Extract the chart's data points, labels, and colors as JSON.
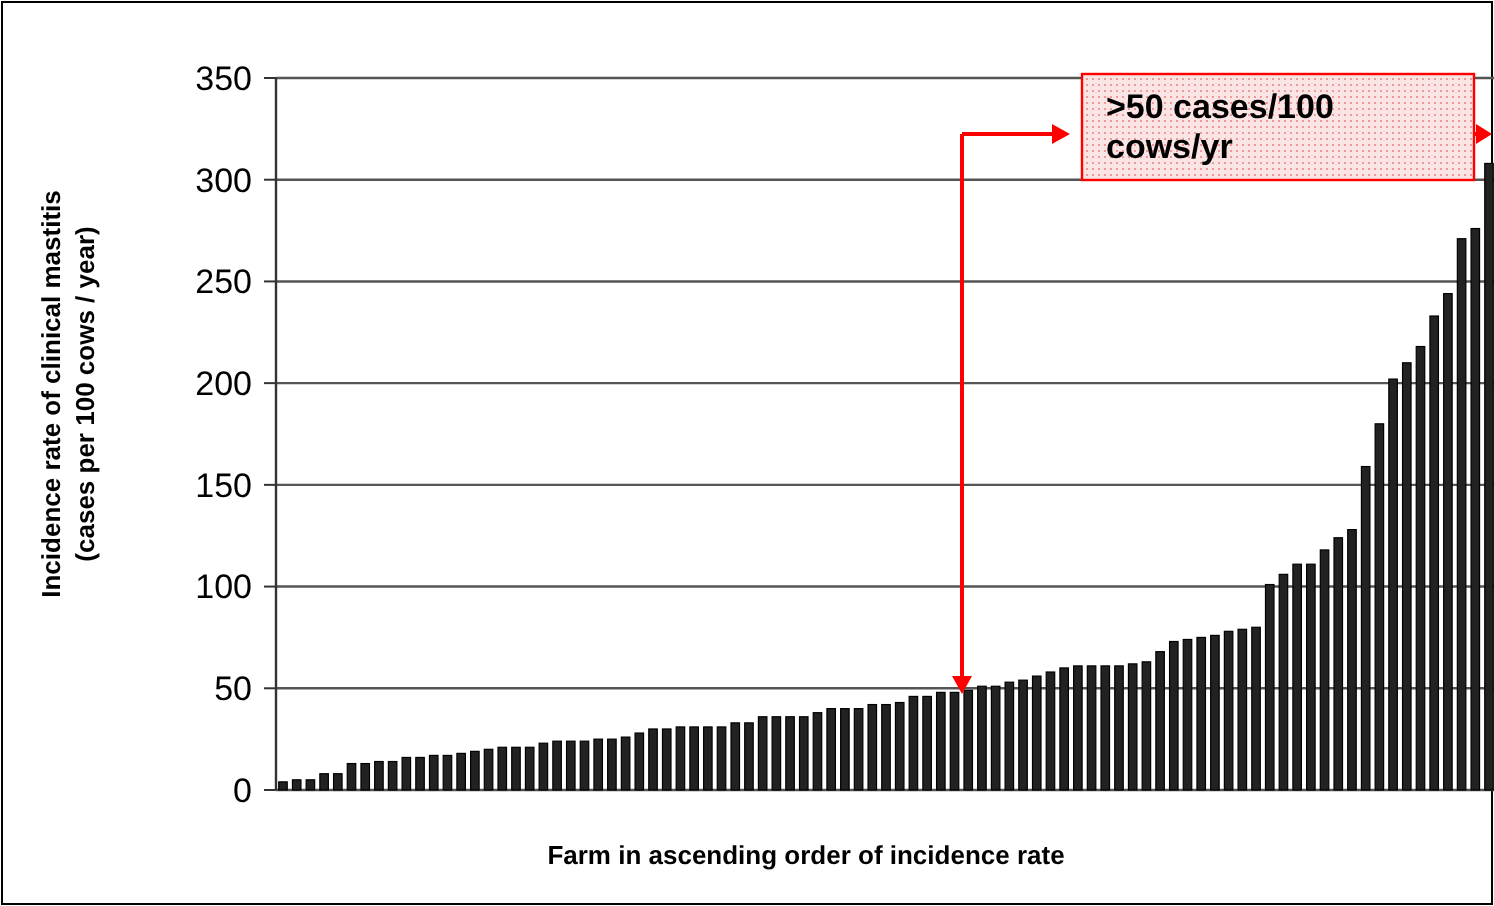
{
  "chart_data": {
    "type": "bar",
    "xlabel": "Farm in ascending order of incidence rate",
    "ylabel": "Incidence rate of clinical mastitis\n(cases per 100 cows / year)",
    "categories": [
      null,
      null,
      null,
      null,
      null,
      null,
      null,
      null,
      null,
      null,
      null,
      null,
      null,
      null,
      null,
      null,
      null,
      null,
      null,
      null,
      null,
      null,
      null,
      null,
      null,
      null,
      null,
      null,
      null,
      null,
      null,
      null,
      null,
      null,
      null,
      null,
      null,
      null,
      null,
      null,
      null,
      null,
      null,
      null,
      null,
      null,
      null,
      null,
      null,
      null,
      null,
      null,
      null,
      null,
      null,
      null,
      null,
      null,
      null,
      null,
      null,
      null,
      null,
      null,
      null,
      null,
      null,
      null,
      null,
      null,
      null,
      null,
      null,
      null,
      null,
      null,
      null,
      null,
      null,
      null,
      null,
      null,
      null,
      null,
      null,
      null,
      null,
      null,
      null
    ],
    "values": [
      4,
      5,
      5,
      8,
      8,
      13,
      13,
      14,
      14,
      16,
      16,
      17,
      17,
      18,
      19,
      20,
      21,
      21,
      21,
      23,
      24,
      24,
      24,
      25,
      25,
      26,
      28,
      30,
      30,
      31,
      31,
      31,
      31,
      33,
      33,
      36,
      36,
      36,
      36,
      38,
      40,
      40,
      40,
      42,
      42,
      43,
      46,
      46,
      48,
      48,
      49,
      51,
      51,
      53,
      54,
      56,
      58,
      60,
      61,
      61,
      61,
      61,
      62,
      63,
      68,
      73,
      74,
      75,
      76,
      78,
      79,
      80,
      101,
      106,
      111,
      111,
      118,
      124,
      128,
      159,
      180,
      202,
      210,
      218,
      233,
      244,
      271,
      276,
      308
    ],
    "color": "#222222",
    "ylim": [
      0,
      350
    ],
    "yticks": [
      0,
      50,
      100,
      150,
      200,
      250,
      300,
      350
    ],
    "grid": "y",
    "annotations": [
      ">50 cases/100 cows/yr"
    ]
  }
}
